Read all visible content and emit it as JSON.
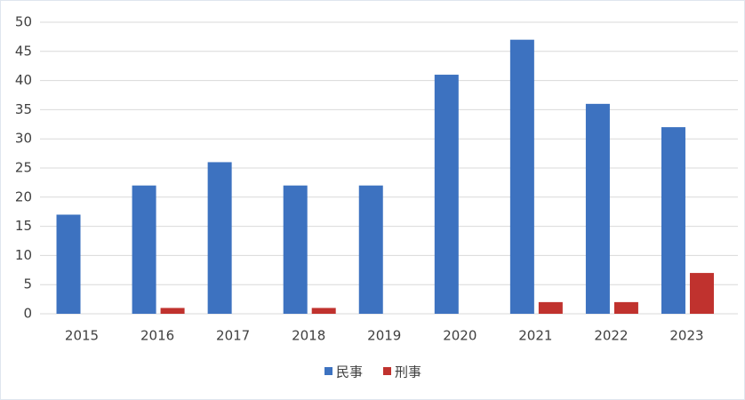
{
  "chart_data": {
    "type": "bar",
    "categories": [
      "2015",
      "2016",
      "2017",
      "2018",
      "2019",
      "2020",
      "2021",
      "2022",
      "2023"
    ],
    "series": [
      {
        "name": "民事",
        "color": "#3d72c0",
        "values": [
          17,
          22,
          26,
          22,
          22,
          41,
          47,
          36,
          32
        ]
      },
      {
        "name": "刑事",
        "color": "#c0322e",
        "values": [
          0,
          1,
          0,
          1,
          0,
          0,
          2,
          2,
          7
        ]
      }
    ],
    "ylim": [
      0,
      50
    ],
    "yticks": [
      0,
      5,
      10,
      15,
      20,
      25,
      30,
      35,
      40,
      45,
      50
    ],
    "grid": true,
    "legend": "bottom"
  }
}
